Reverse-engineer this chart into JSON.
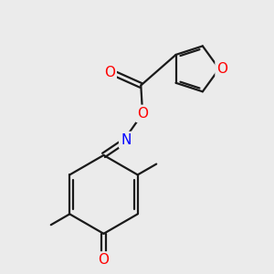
{
  "background_color": "#ebebeb",
  "bond_color": "#1a1a1a",
  "atom_colors": {
    "O": "#ff0000",
    "N": "#0000ff",
    "C": "#1a1a1a"
  },
  "font_size_atoms": 11,
  "figsize": [
    3.0,
    3.0
  ],
  "dpi": 100
}
